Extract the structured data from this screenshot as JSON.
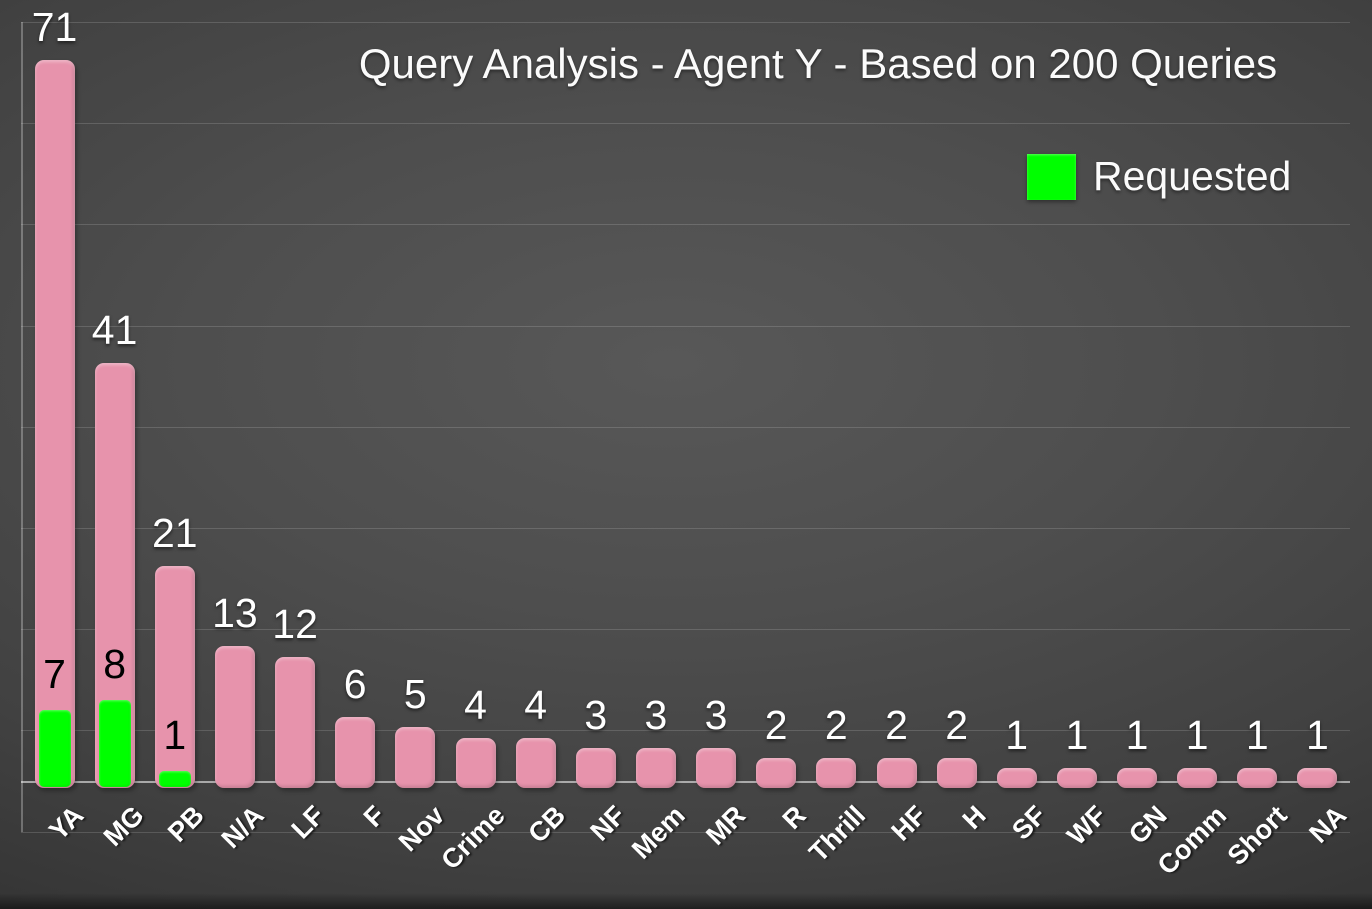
{
  "title": "Query Analysis - Agent Y - Based on 200 Queries",
  "legend": {
    "label": "Requested"
  },
  "chart_data": {
    "type": "bar",
    "title": "Query Analysis - Agent Y - Based on 200 Queries",
    "categories": [
      "YA",
      "MG",
      "PB",
      "N/A",
      "LF",
      "F",
      "Nov",
      "Crime",
      "CB",
      "NF",
      "Mem",
      "MR",
      "R",
      "Thrill",
      "HF",
      "H",
      "SF",
      "WF",
      "GN",
      "Comm",
      "Short",
      "NA"
    ],
    "series": [
      {
        "name": "Queries",
        "color": "#e793ac",
        "values": [
          71,
          41,
          21,
          13,
          12,
          6,
          5,
          4,
          4,
          3,
          3,
          3,
          2,
          2,
          2,
          2,
          1,
          1,
          1,
          1,
          1,
          1
        ],
        "label_color": "#ffffff"
      },
      {
        "name": "Requested",
        "color": "#00ff00",
        "values": [
          7,
          8,
          1,
          0,
          0,
          0,
          0,
          0,
          0,
          0,
          0,
          0,
          0,
          0,
          0,
          0,
          0,
          0,
          0,
          0,
          0,
          0
        ],
        "label_color": "#000000",
        "in_legend": true
      }
    ],
    "ylim": [
      -5,
      75
    ],
    "gridline_step": 10,
    "grid": true,
    "legend_position": "top-right",
    "value_labels": true,
    "x_label_rotation_deg": 45
  }
}
